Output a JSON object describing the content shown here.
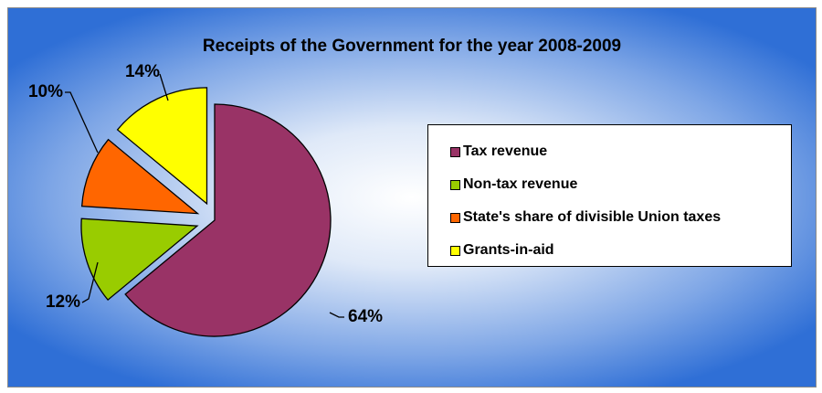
{
  "chart_data": {
    "type": "pie",
    "title": "Receipts of the Government for the year 2008-2009",
    "legend_position": "right",
    "slices": [
      {
        "name": "Tax revenue",
        "value": 64,
        "label": "64%",
        "color": "#993366"
      },
      {
        "name": "Non-tax revenue",
        "value": 12,
        "label": "12%",
        "color": "#99cc00"
      },
      {
        "name": "State's share of divisible Union taxes",
        "value": 10,
        "label": "10%",
        "color": "#ff6600"
      },
      {
        "name": "Grants-in-aid",
        "value": 14,
        "label": "14%",
        "color": "#ffff00"
      }
    ]
  }
}
